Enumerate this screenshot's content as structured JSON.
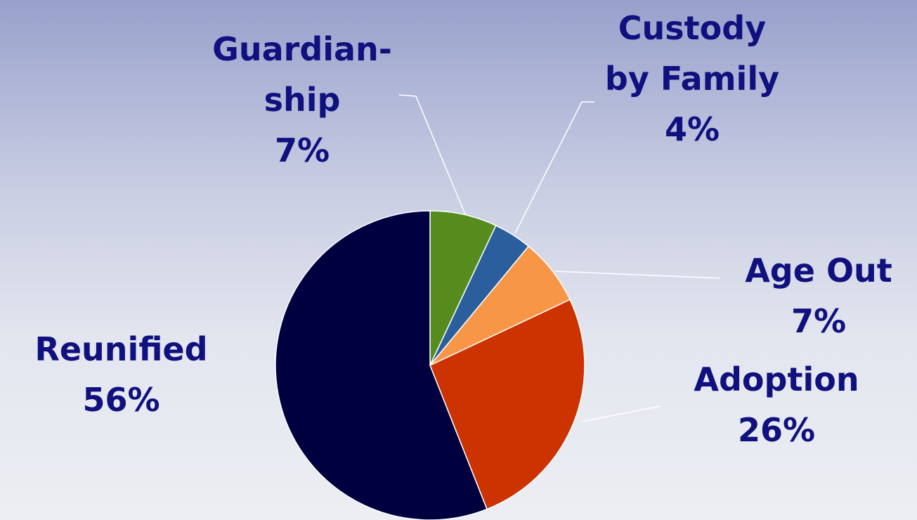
{
  "chart_data": {
    "type": "pie",
    "categories": [
      "Guardian-ship",
      "Custody by Family",
      "Age Out",
      "Adoption",
      "Reunified"
    ],
    "values": [
      7,
      4,
      7,
      26,
      56
    ],
    "value_labels": [
      "7%",
      "4%",
      "7%",
      "26%",
      "56%"
    ],
    "colors": [
      "#568c1e",
      "#2a5e9c",
      "#f79646",
      "#cc3300",
      "#000040"
    ]
  }
}
